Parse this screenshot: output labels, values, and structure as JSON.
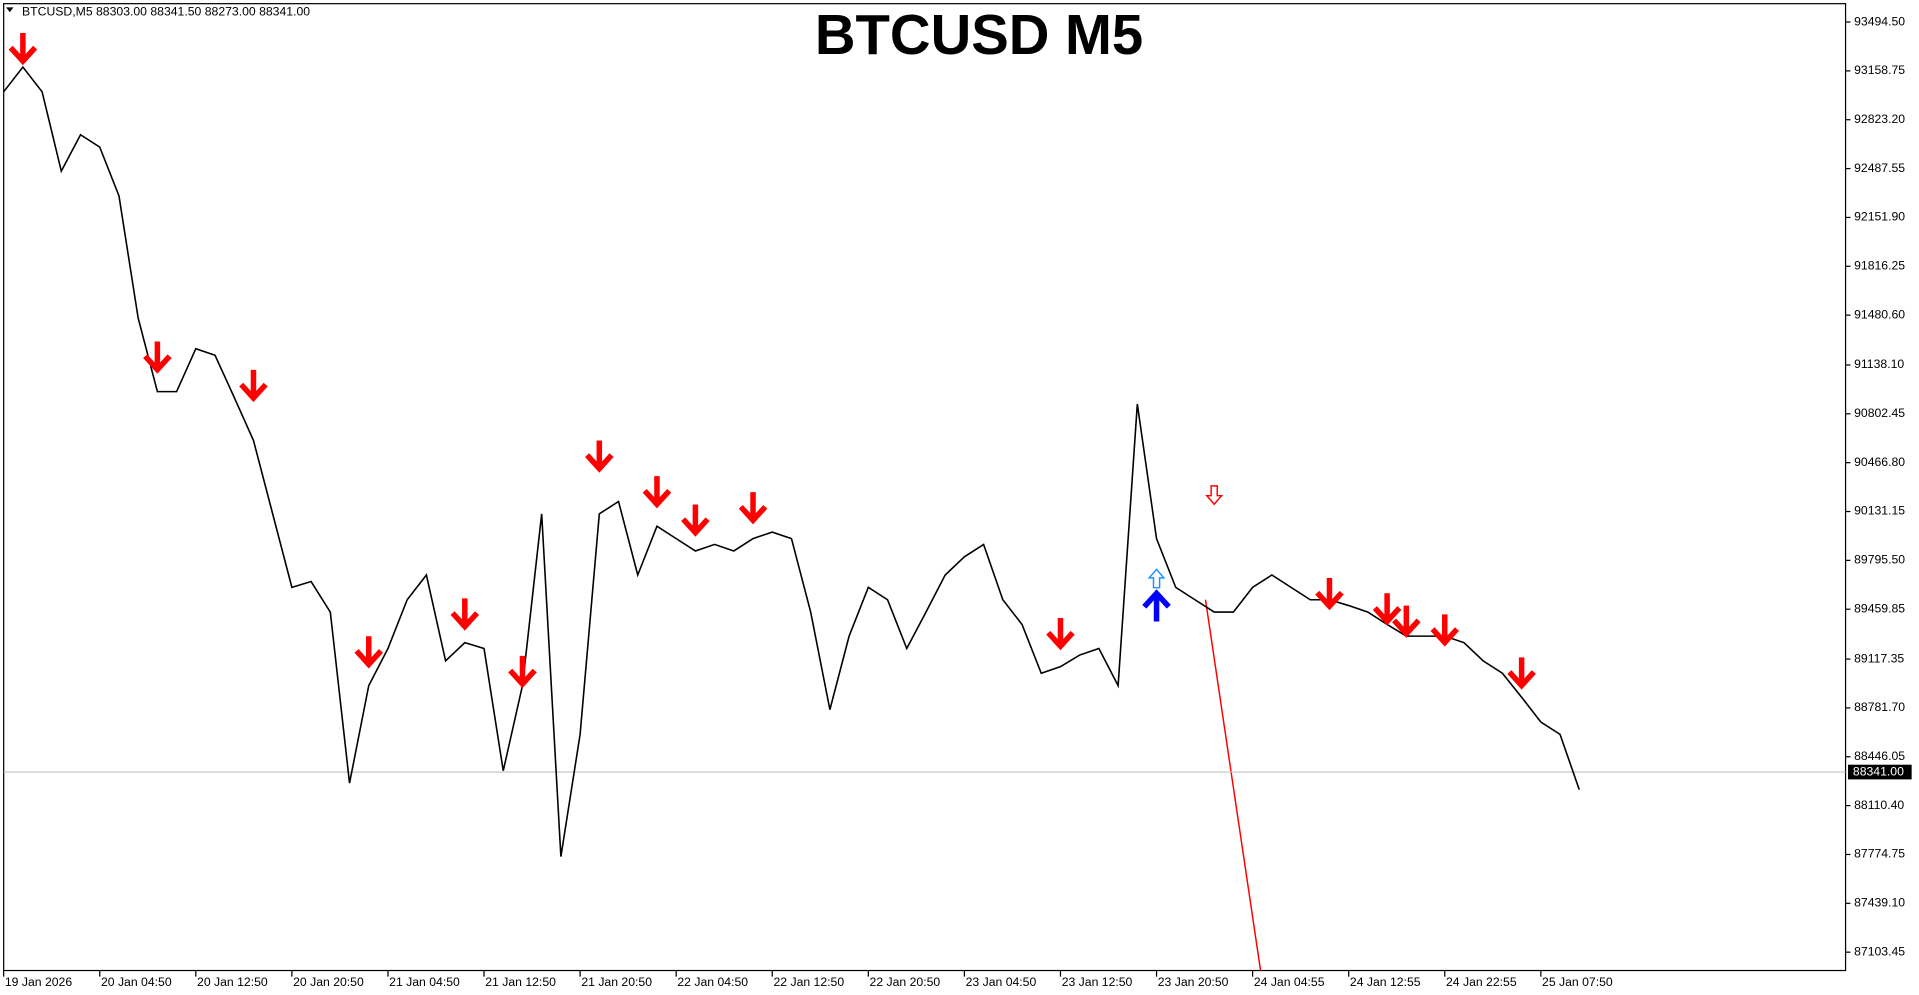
{
  "header": "BTCUSD,M5  88303.00 88341.50 88273.00 88341.00",
  "chart_data": {
    "type": "line",
    "title": "BTCUSD M5",
    "categories": [
      "19 Jan 2026",
      null,
      null,
      null,
      null,
      "20 Jan 04:50",
      null,
      null,
      null,
      null,
      "20 Jan 12:50",
      null,
      null,
      null,
      null,
      "20 Jan 20:50",
      null,
      null,
      null,
      null,
      "21 Jan 04:50",
      null,
      null,
      null,
      null,
      "21 Jan 12:50",
      null,
      null,
      null,
      null,
      "21 Jan 20:50",
      null,
      null,
      null,
      null,
      "22 Jan 04:50",
      null,
      null,
      null,
      null,
      "22 Jan 12:50",
      null,
      null,
      null,
      null,
      "22 Jan 20:50",
      null,
      null,
      null,
      null,
      "23 Jan 04:50",
      null,
      null,
      null,
      null,
      "23 Jan 12:50",
      null,
      null,
      null,
      null,
      "23 Jan 20:50",
      null,
      null,
      null,
      null,
      "24 Jan 04:55",
      null,
      null,
      null,
      null,
      "24 Jan 12:55",
      null,
      null,
      null,
      null,
      "24 Jan 22:55",
      null,
      null,
      null,
      null,
      "25 Jan 07:50",
      null,
      null
    ],
    "values": [
      93015,
      93185,
      93015,
      92470,
      92720,
      92635,
      92300,
      91460,
      90955,
      90955,
      91250,
      91205,
      90915,
      90620,
      90115,
      89610,
      89650,
      89440,
      88265,
      88935,
      89190,
      89525,
      89695,
      89105,
      89230,
      89190,
      88350,
      88935,
      90115,
      87760,
      88600,
      90115,
      90200,
      89695,
      90030,
      89945,
      89860,
      89905,
      89860,
      89945,
      89990,
      89945,
      89440,
      88770,
      89275,
      89610,
      89525,
      89190,
      89440,
      89695,
      89820,
      89905,
      89525,
      89355,
      89020,
      89065,
      89145,
      89190,
      88935,
      90870,
      89945,
      89610,
      89525,
      89440,
      89440,
      89610,
      89695,
      89610,
      89525,
      89525,
      89485,
      89440,
      89355,
      89275,
      89275,
      89275,
      89230,
      89105,
      89020,
      88855,
      88685,
      88600,
      88220
    ],
    "color": "#000000",
    "sell_arrows": [
      null,
      93310,
      null,
      null,
      null,
      null,
      null,
      null,
      91190,
      null,
      null,
      null,
      null,
      90995,
      null,
      null,
      null,
      null,
      null,
      89165,
      null,
      null,
      null,
      null,
      89425,
      null,
      null,
      89030,
      null,
      null,
      null,
      90510,
      null,
      null,
      90265,
      null,
      90070,
      null,
      null,
      90155,
      null,
      null,
      null,
      null,
      null,
      null,
      null,
      null,
      null,
      null,
      null,
      null,
      null,
      null,
      null,
      89290,
      null,
      null,
      null,
      null,
      null,
      null,
      null,
      null,
      null,
      null,
      null,
      null,
      null,
      89565,
      null,
      null,
      89460,
      89375,
      null,
      89315,
      null,
      null,
      null,
      89020,
      null,
      null,
      null
    ],
    "sell_color": "#ff0000",
    "hollow_sell_arrows": [
      null,
      null,
      null,
      null,
      null,
      null,
      null,
      null,
      null,
      null,
      null,
      null,
      null,
      null,
      null,
      null,
      null,
      null,
      null,
      null,
      null,
      null,
      null,
      null,
      null,
      null,
      null,
      null,
      null,
      null,
      null,
      null,
      null,
      null,
      null,
      null,
      null,
      null,
      null,
      null,
      null,
      null,
      null,
      null,
      null,
      null,
      null,
      null,
      null,
      null,
      null,
      null,
      null,
      null,
      null,
      null,
      null,
      null,
      null,
      null,
      null,
      null,
      null,
      90240,
      null,
      null,
      null,
      null,
      null,
      null,
      null,
      null,
      null,
      null,
      null,
      null,
      null,
      null,
      null,
      null,
      null,
      null,
      null
    ],
    "buy_arrows": [
      null,
      null,
      null,
      null,
      null,
      null,
      null,
      null,
      null,
      null,
      null,
      null,
      null,
      null,
      null,
      null,
      null,
      null,
      null,
      null,
      null,
      null,
      null,
      null,
      null,
      null,
      null,
      null,
      null,
      null,
      null,
      null,
      null,
      null,
      null,
      null,
      null,
      null,
      null,
      null,
      null,
      null,
      null,
      null,
      null,
      null,
      null,
      null,
      null,
      null,
      null,
      null,
      null,
      null,
      null,
      null,
      null,
      null,
      null,
      null,
      89485,
      null,
      null,
      null,
      null,
      null,
      null,
      null,
      null,
      null,
      null,
      null,
      null,
      null,
      null,
      null,
      null,
      null,
      null,
      null,
      null,
      null,
      null
    ],
    "buy_color": "#0000ff",
    "hollow_buy_arrows": [
      null,
      null,
      null,
      null,
      null,
      null,
      null,
      null,
      null,
      null,
      null,
      null,
      null,
      null,
      null,
      null,
      null,
      null,
      null,
      null,
      null,
      null,
      null,
      null,
      null,
      null,
      null,
      null,
      null,
      null,
      null,
      null,
      null,
      null,
      null,
      null,
      null,
      null,
      null,
      null,
      null,
      null,
      null,
      null,
      null,
      null,
      null,
      null,
      null,
      null,
      null,
      null,
      null,
      null,
      null,
      null,
      null,
      null,
      null,
      null,
      89675,
      null,
      null,
      null,
      null,
      null,
      null,
      null,
      null,
      null,
      null,
      null,
      null,
      null,
      null,
      null,
      null,
      null,
      null,
      null,
      null,
      null,
      null
    ],
    "hollow_buy_color": "#1e90ff",
    "current_price": {
      "value": 88341,
      "label": "88341.00"
    },
    "ylim": [
      86977.3,
      93620.6
    ],
    "yticks": [
      {
        "value": 93494.5,
        "label": "93494.50"
      },
      {
        "value": 93158.75,
        "label": "93158.75"
      },
      {
        "value": 92823.2,
        "label": "92823.20"
      },
      {
        "value": 92487.55,
        "label": "92487.55"
      },
      {
        "value": 92151.9,
        "label": "92151.90"
      },
      {
        "value": 91816.25,
        "label": "91816.25"
      },
      {
        "value": 91480.6,
        "label": "91480.60"
      },
      {
        "value": 91138.1,
        "label": "91138.10"
      },
      {
        "value": 90802.45,
        "label": "90802.45"
      },
      {
        "value": 90466.8,
        "label": "90466.80"
      },
      {
        "value": 90131.15,
        "label": "90131.15"
      },
      {
        "value": 89795.5,
        "label": "89795.50"
      },
      {
        "value": 89459.85,
        "label": "89459.85"
      },
      {
        "value": 89117.35,
        "label": "89117.35"
      },
      {
        "value": 88781.7,
        "label": "88781.70"
      },
      {
        "value": 88446.05,
        "label": "88446.05"
      },
      {
        "value": 88110.4,
        "label": "88110.40"
      },
      {
        "value": 87774.75,
        "label": "87774.75"
      },
      {
        "value": 87439.1,
        "label": "87439.10"
      },
      {
        "value": 87103.45,
        "label": "87103.45"
      }
    ],
    "grid": false
  }
}
